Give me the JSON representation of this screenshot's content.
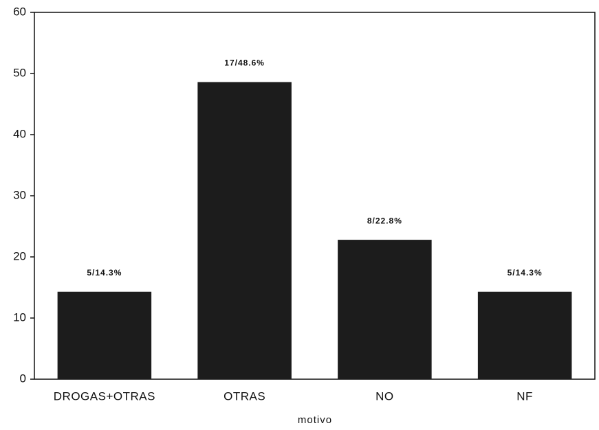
{
  "chart_data": {
    "type": "bar",
    "categories": [
      "DROGAS+OTRAS",
      "OTRAS",
      "NO",
      "NF"
    ],
    "values": [
      14.3,
      48.6,
      22.8,
      14.3
    ],
    "value_labels": [
      "5/14.3%",
      "17/48.6%",
      "8/22.8%",
      "5/14.3%"
    ],
    "color": "#1c1c1c",
    "x_label": "motivo",
    "ylim": [
      0,
      60
    ],
    "yticks": [
      0,
      10,
      20,
      30,
      40,
      50,
      60
    ],
    "grid": false
  }
}
